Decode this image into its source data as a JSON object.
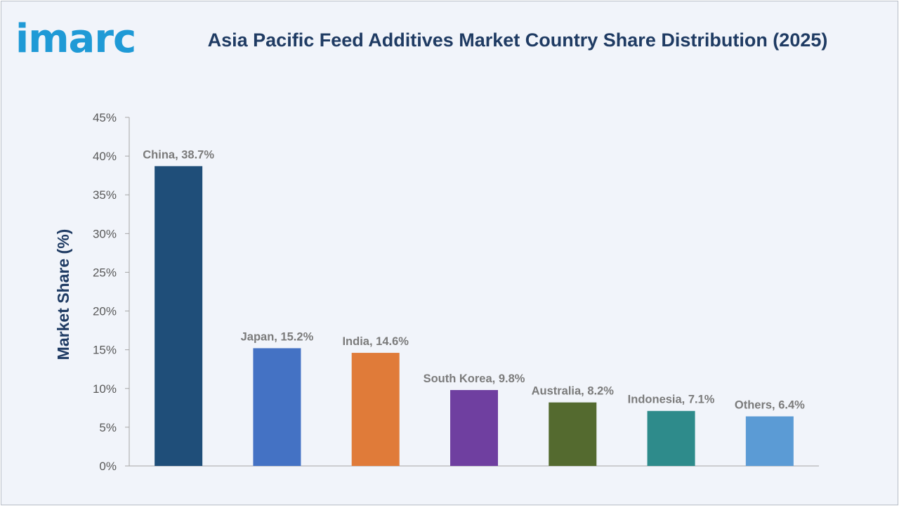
{
  "brand": {
    "logo_text": "imarc",
    "logo_color": "#1f9ad6"
  },
  "chart_data": {
    "type": "bar",
    "title": "Asia Pacific Feed Additives Market Country Share Distribution (2025)",
    "xlabel": "",
    "ylabel": "Market Share (%)",
    "ylim": [
      0,
      45
    ],
    "y_ticks": [
      "0%",
      "5%",
      "10%",
      "15%",
      "20%",
      "25%",
      "30%",
      "35%",
      "40%",
      "45%"
    ],
    "grid": false,
    "categories": [
      "China",
      "Japan",
      "India",
      "South Korea",
      "Australia",
      "Indonesia",
      "Others"
    ],
    "values": [
      38.7,
      15.2,
      14.6,
      9.8,
      8.2,
      7.1,
      6.4
    ],
    "data_labels": [
      "China, 38.7%",
      "Japan, 15.2%",
      "India, 14.6%",
      "South Korea, 9.8%",
      "Australia, 8.2%",
      "Indonesia, 7.1%",
      "Others, 6.4%"
    ],
    "colors": [
      "#1f4e79",
      "#4472c4",
      "#e07b39",
      "#6f3fa0",
      "#546a2f",
      "#2e8b8b",
      "#5b9bd5"
    ]
  }
}
